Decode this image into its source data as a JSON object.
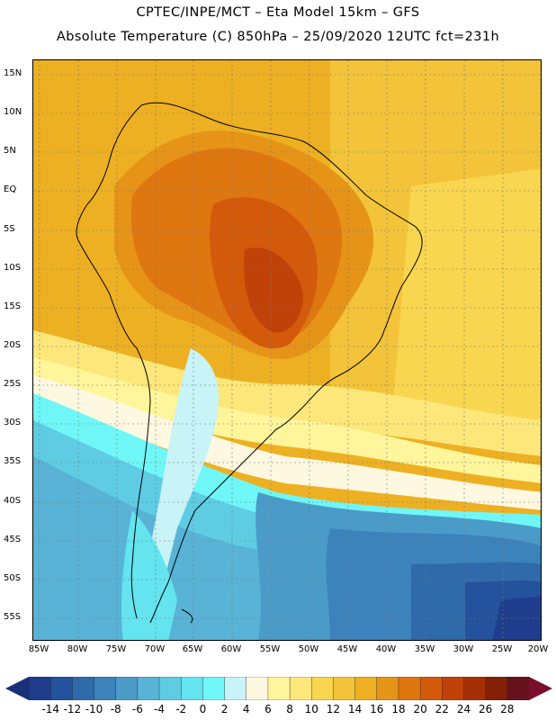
{
  "header": {
    "line1": "CPTEC/INPE/MCT –  Eta Model 15km – GFS",
    "line2": "Absolute Temperature (C) 850hPa – 25/09/2020 12UTC fct=231h"
  },
  "map": {
    "lat_labels": [
      "15N",
      "10N",
      "5N",
      "EQ",
      "5S",
      "10S",
      "15S",
      "20S",
      "25S",
      "30S",
      "35S",
      "40S",
      "45S",
      "50S",
      "55S"
    ],
    "lon_labels": [
      "85W",
      "80W",
      "75W",
      "70W",
      "65W",
      "60W",
      "55W",
      "50W",
      "45W",
      "40W",
      "35W",
      "30W",
      "25W",
      "20W"
    ]
  },
  "colorbar": {
    "labels": [
      "-14",
      "-12",
      "-10",
      "-8",
      "-6",
      "-4",
      "-2",
      "0",
      "2",
      "4",
      "6",
      "8",
      "10",
      "12",
      "14",
      "16",
      "18",
      "20",
      "22",
      "24",
      "26",
      "28"
    ],
    "colors": [
      "#1f3d8c",
      "#24529c",
      "#2f6aab",
      "#3c82bb",
      "#4b9bc9",
      "#58b3d6",
      "#5ecde4",
      "#63e4ef",
      "#6ff7f7",
      "#c8f3f7",
      "#fff8e0",
      "#fff59a",
      "#fde77a",
      "#f9d64f",
      "#f3c43a",
      "#edb022",
      "#e69418",
      "#df7711",
      "#d45a0b",
      "#c14208",
      "#a63006",
      "#842006",
      "#66121c"
    ],
    "left_arrow_color": "#1a2f7a",
    "right_arrow_color": "#7a0e2c"
  }
}
